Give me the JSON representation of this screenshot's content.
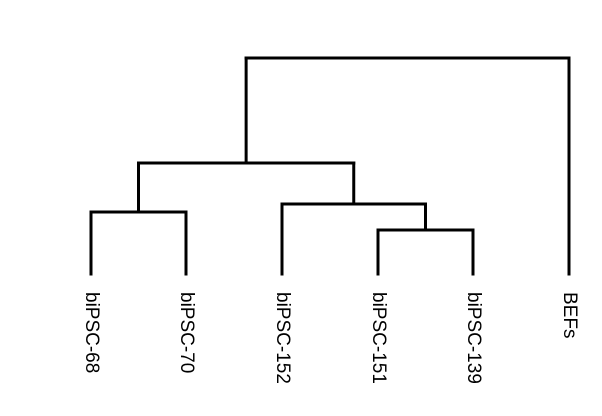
{
  "diagram": {
    "type": "dendrogram",
    "orientation": "top-down",
    "line_color": "#000000",
    "leaves": [
      {
        "id": "l0",
        "label": "biPSC-68"
      },
      {
        "id": "l1",
        "label": "biPSC-70"
      },
      {
        "id": "l2",
        "label": "biPSC-152"
      },
      {
        "id": "l3",
        "label": "biPSC-151"
      },
      {
        "id": "l4",
        "label": "biPSC-139"
      },
      {
        "id": "l5",
        "label": "BEFs"
      }
    ],
    "merges": [
      {
        "id": "m_68_70",
        "children": [
          "l0",
          "l1"
        ]
      },
      {
        "id": "m_151_139",
        "children": [
          "l3",
          "l4"
        ]
      },
      {
        "id": "m_152_group",
        "children": [
          "l2",
          "m_151_139"
        ]
      },
      {
        "id": "m_ipsc",
        "children": [
          "m_68_70",
          "m_152_group"
        ]
      },
      {
        "id": "m_root",
        "children": [
          "m_ipsc",
          "l5"
        ]
      }
    ]
  }
}
